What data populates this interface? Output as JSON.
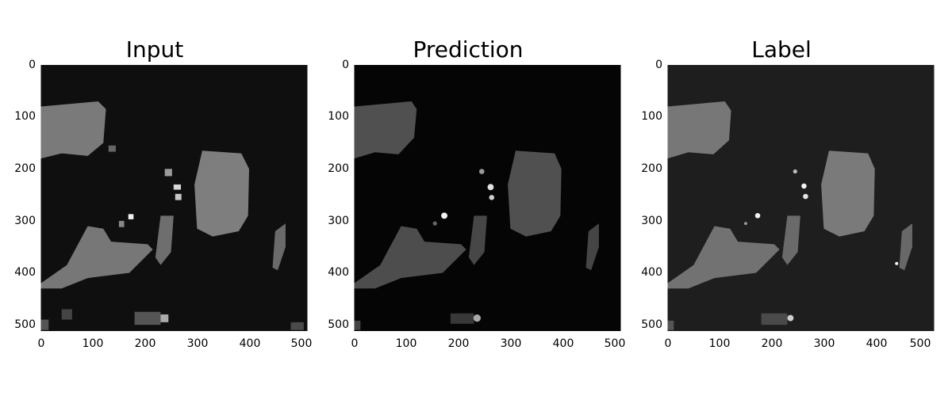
{
  "figure": {
    "panels": [
      {
        "title": "Input"
      },
      {
        "title": "Prediction"
      },
      {
        "title": "Label"
      }
    ],
    "x_ticks": [
      "0",
      "100",
      "200",
      "300",
      "400",
      "500"
    ],
    "y_ticks": [
      "0",
      "100",
      "200",
      "300",
      "400",
      "500"
    ],
    "colors": {
      "background_dark": "#0d0d0d",
      "label_background": "#1e1e1e",
      "region_gray": "#777777",
      "prediction_gray": "#4e4e4e",
      "bright_spots": "#e8e8e8"
    },
    "image_extent": [
      0,
      511
    ]
  }
}
